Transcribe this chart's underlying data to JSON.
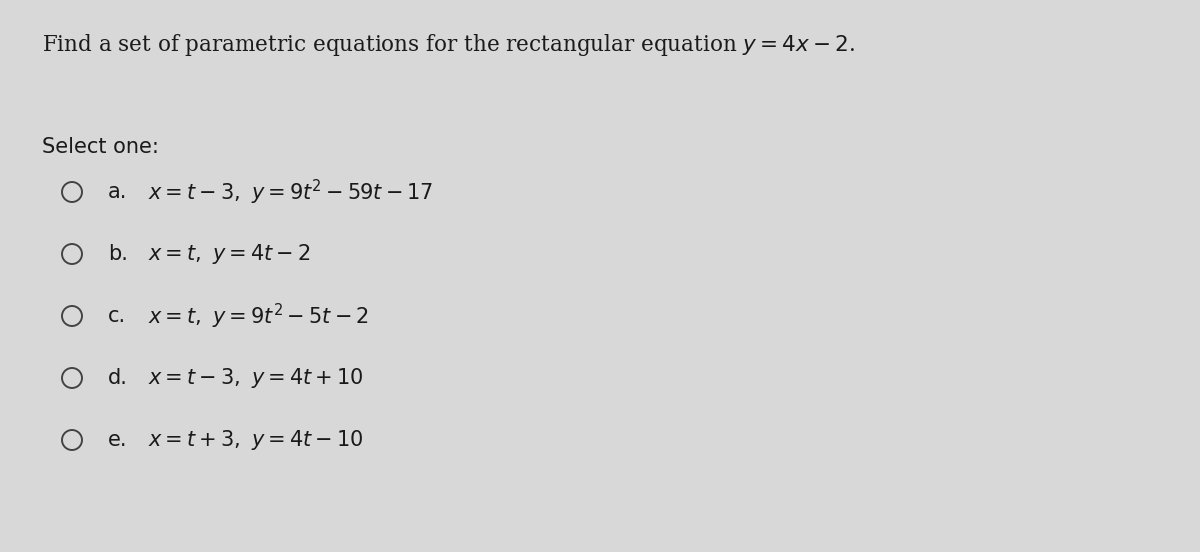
{
  "background_color": "#d8d8d8",
  "title_line1": "Find a set of parametric equations for the rectangular equation ",
  "title_math": "$y = 4x - 2$",
  "title_full": "Find a set of parametric equations for the rectangular equation $y = 4x - 2$.",
  "select_one_text": "Select one:",
  "options": [
    {
      "label": "a.",
      "equation": "$x = t - 3, \\ y = 9t^2 - 59t - 17$"
    },
    {
      "label": "b.",
      "equation": "$x = t, \\ y = 4t - 2$"
    },
    {
      "label": "c.",
      "equation": "$x = t, \\ y = 9t^2 - 5t - 2$"
    },
    {
      "label": "d.",
      "equation": "$x = t - 3, \\ y = 4t + 10$"
    },
    {
      "label": "e.",
      "equation": "$x = t + 3, \\ y = 4t - 10$"
    }
  ],
  "circle_color": "#444444",
  "text_color": "#1a1a1a",
  "title_fontsize": 15.5,
  "select_fontsize": 15,
  "option_fontsize": 15,
  "label_fontsize": 15
}
